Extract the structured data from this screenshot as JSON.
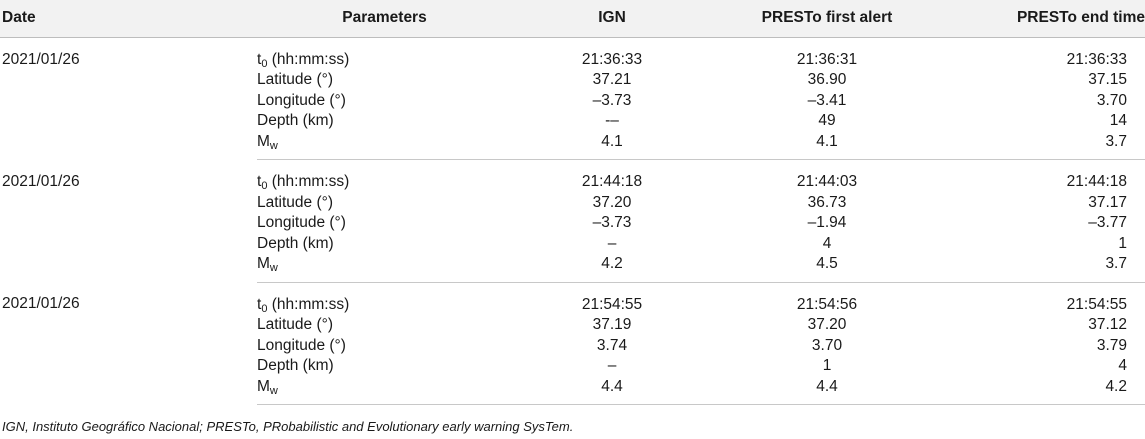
{
  "table": {
    "headers": {
      "date": "Date",
      "parameters": "Parameters",
      "ign": "IGN",
      "presto_first": "PRESTo first alert",
      "presto_end": "PRESTo end time"
    },
    "param_labels": {
      "t0_main": "t",
      "t0_sub": "0",
      "t0_rest": " (hh:mm:ss)",
      "latitude": "Latitude (°)",
      "longitude": "Longitude (°)",
      "depth": "Depth (km)",
      "mw_main": "M",
      "mw_sub": "w"
    },
    "events": [
      {
        "date": "2021/01/26",
        "rows": {
          "t0": [
            "21:36:33",
            "21:36:31",
            "21:36:33"
          ],
          "latitude": [
            "37.21",
            "36.90",
            "37.15"
          ],
          "longitude": [
            "–3.73",
            "–3.41",
            "3.70"
          ],
          "depth": [
            "-–",
            "49",
            "14"
          ],
          "mw": [
            "4.1",
            "4.1",
            "3.7"
          ]
        }
      },
      {
        "date": "2021/01/26",
        "rows": {
          "t0": [
            "21:44:18",
            "21:44:03",
            "21:44:18"
          ],
          "latitude": [
            "37.20",
            "36.73",
            "37.17"
          ],
          "longitude": [
            "–3.73",
            "–1.94",
            "–3.77"
          ],
          "depth": [
            "–",
            "4",
            "1"
          ],
          "mw": [
            "4.2",
            "4.5",
            "3.7"
          ]
        }
      },
      {
        "date": "2021/01/26",
        "rows": {
          "t0": [
            "21:54:55",
            "21:54:56",
            "21:54:55"
          ],
          "latitude": [
            "37.19",
            "37.20",
            "37.12"
          ],
          "longitude": [
            "3.74",
            "3.70",
            "3.79"
          ],
          "depth": [
            "–",
            "1",
            "4"
          ],
          "mw": [
            "4.4",
            "4.4",
            "4.2"
          ]
        }
      }
    ]
  },
  "footnote": "IGN, Instituto Geográfico Nacional; PRESTo, PRobabilistic and Evolutionary early warning SysTem."
}
